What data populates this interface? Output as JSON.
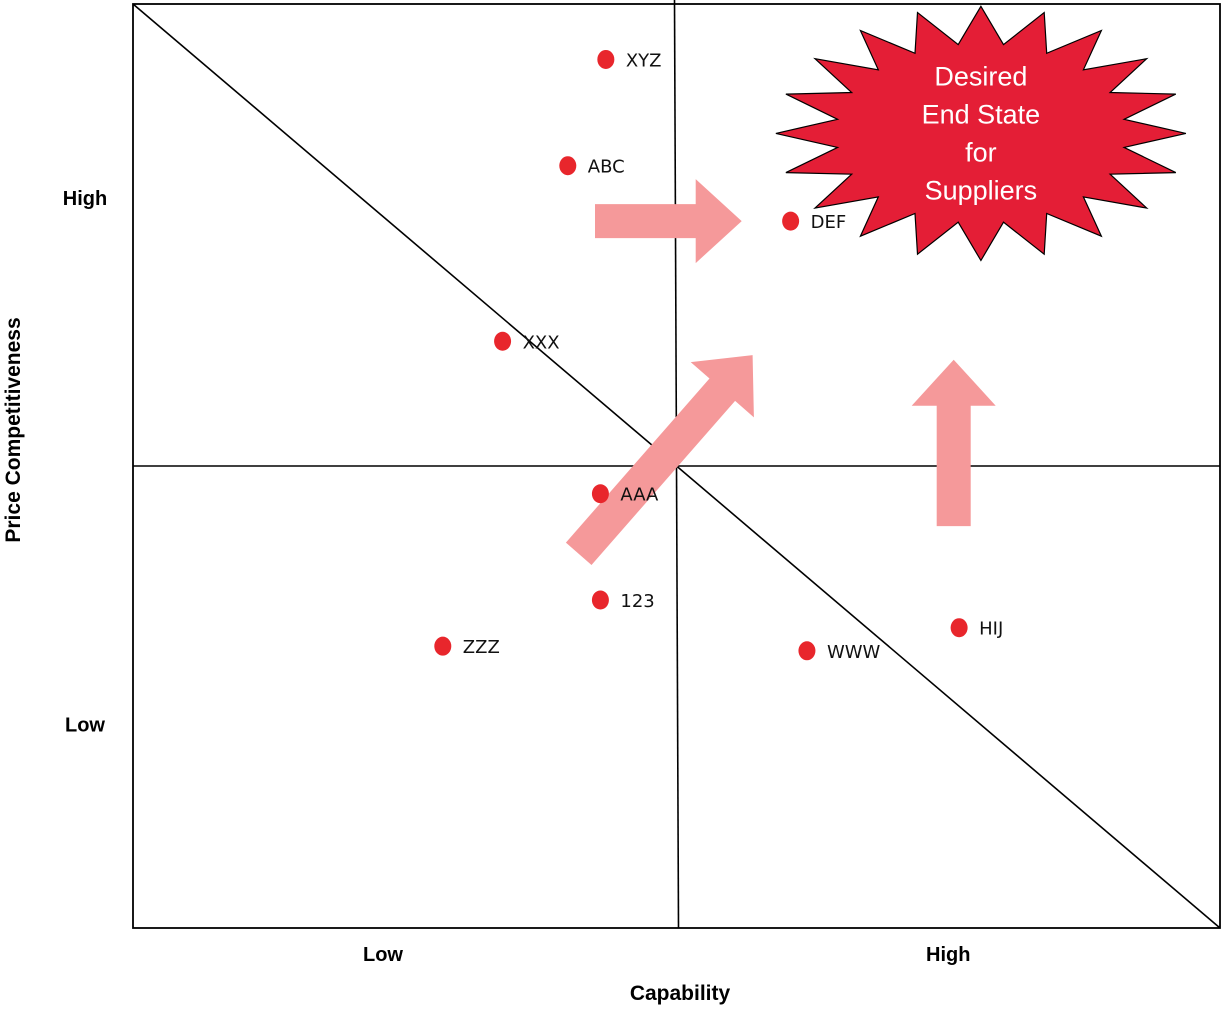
{
  "chart_data": {
    "type": "scatter",
    "xlabel": "Capability",
    "ylabel": "Price Competitiveness",
    "xlim": [
      0,
      100
    ],
    "ylim": [
      0,
      100
    ],
    "x_ticks": [
      {
        "value": 23,
        "label": "Low"
      },
      {
        "value": 75,
        "label": "High"
      }
    ],
    "y_ticks": [
      {
        "value": 79,
        "label": "High"
      },
      {
        "value": 22,
        "label": "Low"
      }
    ],
    "quadrant_dividers": {
      "x": 50,
      "y": 50
    },
    "diagonal": {
      "from": [
        0,
        100
      ],
      "to": [
        100,
        0
      ]
    },
    "point_color": "#e8262c",
    "arrow_color": "#f5999a",
    "points": [
      {
        "label": "XYZ",
        "x": 43.5,
        "y": 94
      },
      {
        "label": "ABC",
        "x": 40,
        "y": 82.5
      },
      {
        "label": "DEF",
        "x": 60.5,
        "y": 76.5
      },
      {
        "label": "XXX",
        "x": 34,
        "y": 63.5
      },
      {
        "label": "AAA",
        "x": 43,
        "y": 47
      },
      {
        "label": "123",
        "x": 43,
        "y": 35.5
      },
      {
        "label": "ZZZ",
        "x": 28.5,
        "y": 30.5
      },
      {
        "label": "WWW",
        "x": 62,
        "y": 30
      },
      {
        "label": "HIJ",
        "x": 76,
        "y": 32.5
      }
    ],
    "arrows": [
      {
        "from": [
          42.5,
          76.5
        ],
        "to": [
          56,
          76.5
        ]
      },
      {
        "from": [
          41,
          40.5
        ],
        "to": [
          57,
          62
        ]
      },
      {
        "from": [
          75.5,
          43.5
        ],
        "to": [
          75.5,
          61.5
        ]
      }
    ],
    "callout": {
      "lines": [
        "Desired",
        "End State",
        "for",
        "Suppliers"
      ],
      "x": 78,
      "y": 86,
      "fill": "#e41e36"
    }
  }
}
